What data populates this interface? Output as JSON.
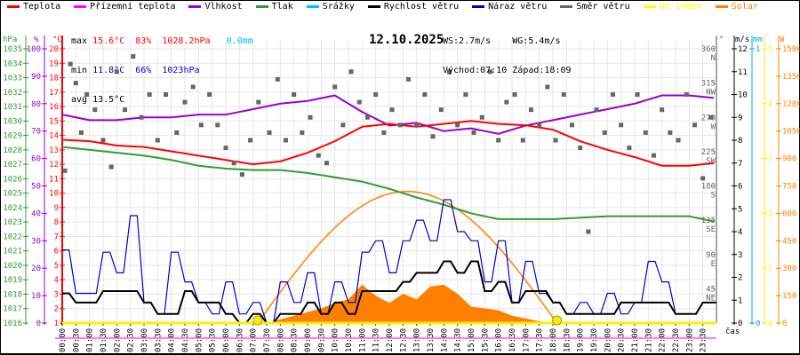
{
  "legend": [
    {
      "label": "Teplota",
      "color": "#ff0000"
    },
    {
      "label": "Přízemní teplota",
      "color": "#ff00ff"
    },
    {
      "label": "Vlhkost",
      "color": "#9900cc"
    },
    {
      "label": "Tlak",
      "color": "#339933"
    },
    {
      "label": "Srážky",
      "color": "#00bfff"
    },
    {
      "label": "Rychlost větru",
      "color": "#000000"
    },
    {
      "label": "Náraz větru",
      "color": "#0000cc"
    },
    {
      "label": "Směr větru",
      "color": "#666666"
    },
    {
      "label": "UV index",
      "color": "#ffff00"
    },
    {
      "label": "Solar",
      "color": "#ff8000"
    }
  ],
  "stats": {
    "max_label": "max",
    "max_temp": "15.6°C",
    "max_hum": "83%",
    "max_press": "1028.2hPa",
    "max_rain": "0.0mm",
    "min_label": "min",
    "min_temp": "11.8°C",
    "min_hum": "66%",
    "min_press": "1023hPa",
    "avg_label": "avg",
    "avg_temp": "13.5°C",
    "ws": "WS:2.7m/s",
    "wg": "WG:5.4m/s",
    "sunrise": "Východ:07:10",
    "sunset": "Západ:18:09"
  },
  "chart_data": {
    "type": "line",
    "title": "12.10.2025",
    "xlabel": "čas",
    "x_range_hours": [
      0,
      24
    ],
    "time_ticks": [
      "00:00",
      "00:30",
      "01:00",
      "01:30",
      "02:00",
      "02:30",
      "03:00",
      "03:30",
      "04:00",
      "04:30",
      "05:00",
      "05:30",
      "06:00",
      "06:30",
      "07:00",
      "07:30",
      "08:00",
      "08:30",
      "09:00",
      "09:30",
      "10:00",
      "10:30",
      "11:00",
      "11:30",
      "12:00",
      "12:30",
      "13:00",
      "13:30",
      "14:00",
      "14:30",
      "15:00",
      "15:30",
      "16:00",
      "16:30",
      "17:00",
      "17:30",
      "18:00",
      "18:30",
      "19:00",
      "19:30",
      "20:00",
      "20:30",
      "21:00",
      "21:30",
      "22:00",
      "22:30",
      "23:00",
      "23:30"
    ],
    "axes": {
      "pressure": {
        "unit": "hPa",
        "range": [
          1016,
          1035
        ],
        "ticks": [
          1016,
          1017,
          1018,
          1019,
          1020,
          1021,
          1022,
          1023,
          1024,
          1025,
          1026,
          1027,
          1028,
          1029,
          1030,
          1031,
          1032,
          1033,
          1034,
          1035
        ]
      },
      "humidity": {
        "unit": "%",
        "range": [
          0,
          100
        ],
        "ticks": [
          0,
          10,
          20,
          30,
          40,
          50,
          60,
          70,
          80,
          90,
          100
        ]
      },
      "temperature": {
        "unit": "°C",
        "range": [
          1,
          20
        ],
        "ticks": [
          1,
          2,
          3,
          4,
          5,
          6,
          7,
          8,
          9,
          10,
          11,
          12,
          13,
          14,
          15,
          16,
          17,
          18,
          19,
          20
        ]
      },
      "direction": {
        "unit": "°",
        "range": [
          0,
          360
        ],
        "ticks": [
          {
            "v": 45,
            "c": "NE"
          },
          {
            "v": 90,
            "c": "E"
          },
          {
            "v": 135,
            "c": "SE"
          },
          {
            "v": 180,
            "c": "S"
          },
          {
            "v": 225,
            "c": "SW"
          },
          {
            "v": 270,
            "c": "W"
          },
          {
            "v": 315,
            "c": "NW"
          },
          {
            "v": 360,
            "c": "N"
          }
        ]
      },
      "wind": {
        "unit": "m/s",
        "range": [
          0,
          12
        ],
        "ticks": [
          0,
          1,
          2,
          3,
          4,
          5,
          6,
          7,
          8,
          9,
          10,
          11,
          12
        ]
      },
      "rain": {
        "unit": "mm",
        "range": [
          0,
          1
        ],
        "ticks": [
          0,
          1
        ]
      },
      "uv": {
        "unit": "",
        "range": [
          0,
          5
        ],
        "ticks": [
          0,
          1,
          2,
          3,
          4,
          5
        ]
      },
      "solar": {
        "unit": "W",
        "range": [
          0,
          1500
        ],
        "ticks": [
          0,
          150,
          300,
          450,
          600,
          750,
          900,
          1050,
          1200,
          1350,
          1500
        ]
      }
    },
    "series": [
      {
        "name": "Teplota",
        "axis": "temperature",
        "color": "#ff0000",
        "points": [
          [
            0,
            13.7
          ],
          [
            1,
            13.6
          ],
          [
            2,
            13.3
          ],
          [
            3,
            13.2
          ],
          [
            4,
            12.9
          ],
          [
            5,
            12.6
          ],
          [
            6,
            12.3
          ],
          [
            7,
            12.0
          ],
          [
            8,
            12.2
          ],
          [
            9,
            12.8
          ],
          [
            10,
            13.6
          ],
          [
            11,
            14.6
          ],
          [
            12,
            14.8
          ],
          [
            13,
            14.6
          ],
          [
            14,
            14.8
          ],
          [
            15,
            15.0
          ],
          [
            16,
            14.8
          ],
          [
            17,
            14.7
          ],
          [
            18,
            14.4
          ],
          [
            19,
            13.6
          ],
          [
            20,
            13.0
          ],
          [
            21,
            12.5
          ],
          [
            22,
            11.9
          ],
          [
            23,
            11.9
          ],
          [
            24,
            12.1
          ]
        ]
      },
      {
        "name": "Vlhkost",
        "axis": "humidity",
        "color": "#9900cc",
        "points": [
          [
            0,
            76
          ],
          [
            1,
            74
          ],
          [
            2,
            74
          ],
          [
            3,
            75
          ],
          [
            4,
            75
          ],
          [
            5,
            76
          ],
          [
            6,
            76
          ],
          [
            7,
            78
          ],
          [
            8,
            80
          ],
          [
            9,
            81
          ],
          [
            10,
            83
          ],
          [
            11,
            77
          ],
          [
            12,
            72
          ],
          [
            13,
            73
          ],
          [
            14,
            70
          ],
          [
            15,
            71
          ],
          [
            16,
            69
          ],
          [
            17,
            72
          ],
          [
            18,
            74
          ],
          [
            19,
            76
          ],
          [
            20,
            78
          ],
          [
            21,
            80
          ],
          [
            22,
            83
          ],
          [
            23,
            83
          ],
          [
            24,
            82
          ]
        ]
      },
      {
        "name": "Tlak",
        "axis": "pressure",
        "color": "#339933",
        "points": [
          [
            0,
            1028.2
          ],
          [
            1,
            1028.0
          ],
          [
            2,
            1027.8
          ],
          [
            3,
            1027.6
          ],
          [
            4,
            1027.3
          ],
          [
            5,
            1026.9
          ],
          [
            6,
            1026.7
          ],
          [
            7,
            1026.6
          ],
          [
            8,
            1026.6
          ],
          [
            9,
            1026.4
          ],
          [
            10,
            1026.1
          ],
          [
            11,
            1025.8
          ],
          [
            12,
            1025.3
          ],
          [
            13,
            1024.7
          ],
          [
            14,
            1024.2
          ],
          [
            15,
            1023.6
          ],
          [
            16,
            1023.2
          ],
          [
            17,
            1023.2
          ],
          [
            18,
            1023.2
          ],
          [
            19,
            1023.3
          ],
          [
            20,
            1023.4
          ],
          [
            21,
            1023.4
          ],
          [
            22,
            1023.4
          ],
          [
            23,
            1023.4
          ],
          [
            24,
            1023.0
          ]
        ]
      },
      {
        "name": "Rychlost větru",
        "axis": "wind",
        "color": "#000000",
        "step_hours": 0.5,
        "values": [
          1.3,
          0.9,
          0.9,
          1.4,
          1.4,
          1.4,
          0.9,
          0.4,
          0.4,
          1.4,
          0.9,
          0.9,
          0.4,
          0.0,
          0.4,
          0.0,
          0.4,
          0.4,
          0.9,
          0.4,
          0.9,
          0.4,
          1.4,
          1.4,
          1.4,
          1.8,
          2.2,
          2.2,
          2.7,
          2.2,
          2.7,
          1.4,
          1.8,
          0.9,
          1.4,
          1.4,
          0.9,
          0.4,
          0.4,
          0.4,
          0.4,
          0.9,
          0.9,
          0.9,
          0.9,
          0.4,
          0.4,
          0.9,
          0.9
        ]
      },
      {
        "name": "Náraz větru",
        "axis": "wind",
        "color": "#0000cc",
        "step_hours": 0.5,
        "values": [
          3.2,
          1.3,
          1.3,
          3.1,
          2.2,
          4.7,
          0.9,
          0.4,
          3.1,
          1.8,
          0.9,
          0.4,
          1.8,
          0.4,
          0.9,
          0.0,
          1.8,
          0.9,
          2.2,
          0.4,
          1.8,
          0.9,
          3.1,
          3.6,
          2.2,
          3.6,
          4.5,
          3.6,
          5.4,
          4.0,
          3.6,
          1.8,
          3.6,
          0.9,
          2.7,
          1.3,
          0.9,
          0.4,
          0.9,
          0.4,
          1.3,
          0.4,
          0.9,
          2.7,
          1.8,
          0.4,
          0.4,
          0.9,
          0.9
        ]
      },
      {
        "name": "Solar",
        "axis": "solar",
        "color": "#ff8000",
        "step_hours": 0.5,
        "start_hour": 7.5,
        "values": [
          0,
          20,
          40,
          60,
          80,
          110,
          130,
          210,
          150,
          110,
          160,
          130,
          200,
          210,
          160,
          90,
          80,
          70,
          40,
          25,
          10,
          0
        ]
      },
      {
        "name": "Solar max",
        "axis": "solar",
        "color": "#ff8000",
        "sunrise_hour": 7.17,
        "sunset_hour": 18.15,
        "peak": 720
      },
      {
        "name": "UV index",
        "axis": "uv",
        "color": "#ffff00",
        "markers_hours": [
          7.17,
          18.15
        ],
        "value": 0
      },
      {
        "name": "Směr větru",
        "axis": "direction",
        "color": "#666666",
        "points": [
          [
            0.1,
            200
          ],
          [
            0.3,
            340
          ],
          [
            0.5,
            315
          ],
          [
            0.7,
            250
          ],
          [
            0.9,
            300
          ],
          [
            1.2,
            280
          ],
          [
            1.5,
            240
          ],
          [
            1.8,
            205
          ],
          [
            2.0,
            330
          ],
          [
            2.3,
            280
          ],
          [
            2.6,
            350
          ],
          [
            2.9,
            270
          ],
          [
            3.2,
            300
          ],
          [
            3.5,
            240
          ],
          [
            3.8,
            300
          ],
          [
            4.2,
            250
          ],
          [
            4.5,
            290
          ],
          [
            4.8,
            310
          ],
          [
            5.1,
            260
          ],
          [
            5.4,
            300
          ],
          [
            5.7,
            260
          ],
          [
            6.0,
            230
          ],
          [
            6.3,
            210
          ],
          [
            6.6,
            195
          ],
          [
            6.9,
            240
          ],
          [
            7.2,
            290
          ],
          [
            7.6,
            250
          ],
          [
            7.9,
            320
          ],
          [
            8.2,
            240
          ],
          [
            8.5,
            300
          ],
          [
            8.8,
            250
          ],
          [
            9.1,
            270
          ],
          [
            9.4,
            220
          ],
          [
            9.7,
            210
          ],
          [
            10.0,
            310
          ],
          [
            10.3,
            260
          ],
          [
            10.6,
            330
          ],
          [
            10.9,
            290
          ],
          [
            11.2,
            270
          ],
          [
            11.5,
            300
          ],
          [
            11.8,
            250
          ],
          [
            12.1,
            280
          ],
          [
            12.4,
            260
          ],
          [
            12.7,
            320
          ],
          [
            13.0,
            260
          ],
          [
            13.3,
            300
          ],
          [
            13.6,
            245
          ],
          [
            13.9,
            280
          ],
          [
            14.2,
            330
          ],
          [
            14.5,
            260
          ],
          [
            14.8,
            300
          ],
          [
            15.1,
            250
          ],
          [
            15.4,
            270
          ],
          [
            15.7,
            330
          ],
          [
            16.0,
            240
          ],
          [
            16.3,
            290
          ],
          [
            16.6,
            300
          ],
          [
            16.9,
            240
          ],
          [
            17.2,
            280
          ],
          [
            17.5,
            260
          ],
          [
            17.8,
            310
          ],
          [
            18.1,
            240
          ],
          [
            18.4,
            300
          ],
          [
            18.7,
            260
          ],
          [
            19.0,
            230
          ],
          [
            19.3,
            120
          ],
          [
            19.6,
            280
          ],
          [
            19.9,
            250
          ],
          [
            20.2,
            300
          ],
          [
            20.5,
            260
          ],
          [
            20.8,
            230
          ],
          [
            21.1,
            300
          ],
          [
            21.4,
            250
          ],
          [
            21.7,
            220
          ],
          [
            22.0,
            280
          ],
          [
            22.3,
            250
          ],
          [
            22.6,
            240
          ],
          [
            22.9,
            300
          ],
          [
            23.2,
            260
          ],
          [
            23.5,
            190
          ],
          [
            23.8,
            270
          ]
        ]
      }
    ]
  }
}
